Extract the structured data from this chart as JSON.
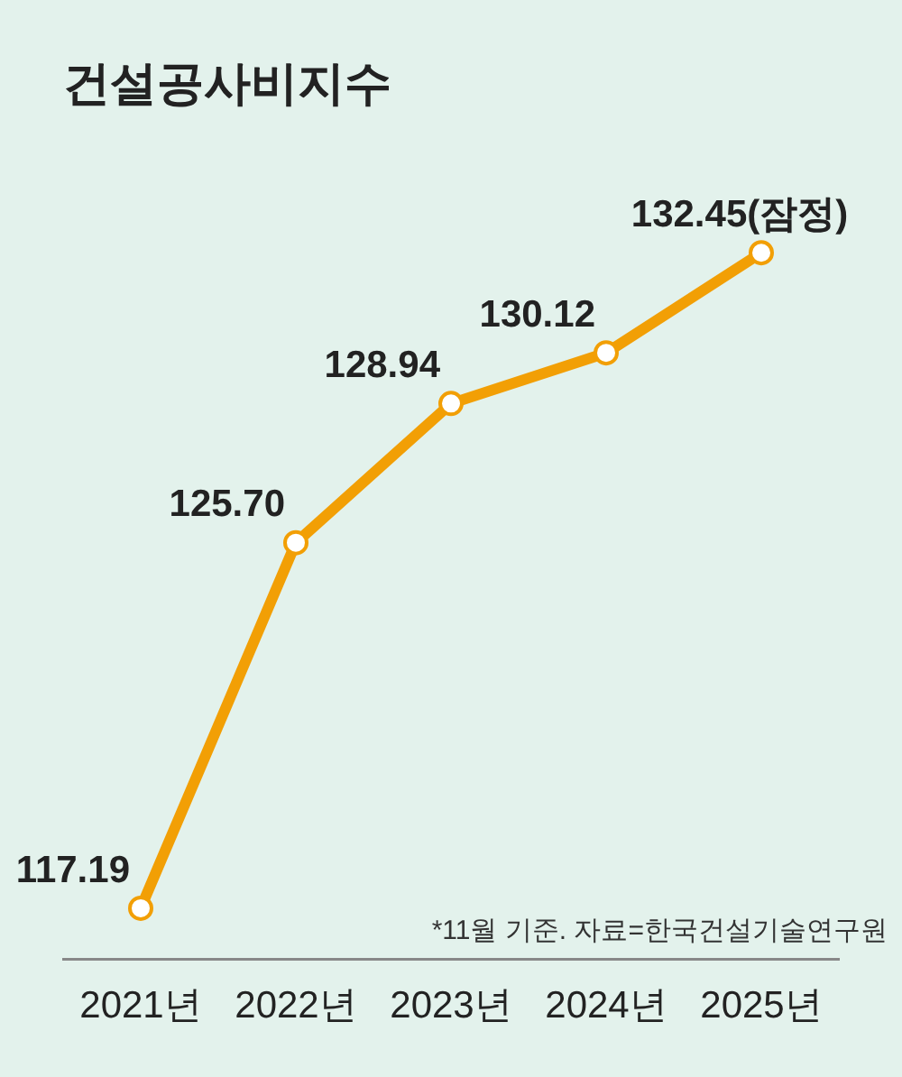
{
  "chart_data": {
    "type": "line",
    "title": "건설공사비지수",
    "categories": [
      "2021년",
      "2022년",
      "2023년",
      "2024년",
      "2025년"
    ],
    "series": [
      {
        "color": "#f29f05",
        "values": [
          117.19,
          125.7,
          128.94,
          130.12,
          132.45
        ],
        "value_labels": [
          "117.19",
          "125.70",
          "128.94",
          "130.12",
          "132.45(잠정)"
        ]
      }
    ],
    "annotations": [
      "*11월 기준. 자료=한국건설기술연구원"
    ],
    "tick_labels": "x",
    "grid": false,
    "legend": false,
    "marker": "circle",
    "line_style": "solid"
  }
}
